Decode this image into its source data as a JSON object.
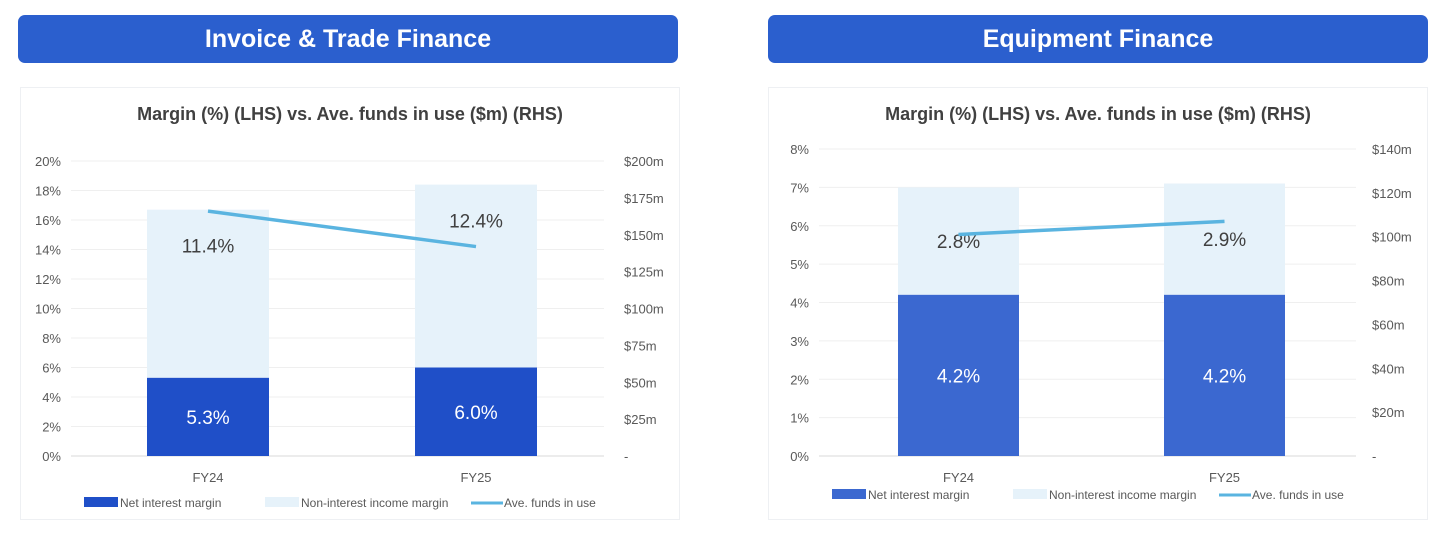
{
  "panels": [
    {
      "header": "Invoice & Trade Finance"
    },
    {
      "header": "Equipment Finance"
    }
  ],
  "colors": {
    "header": "#2b5fce",
    "nim_left": "#1f4fc8",
    "nim_right": "#3b68d0",
    "nonint": "#e6f2fa",
    "line": "#5ab4e0"
  },
  "chart_data": [
    {
      "type": "bar",
      "stacked": true,
      "title": "Margin (%) (LHS) vs. Ave. funds in use ($m) (RHS)",
      "categories": [
        "FY24",
        "FY25"
      ],
      "series": [
        {
          "name": "Net interest margin",
          "axis": "left",
          "values": [
            5.3,
            6.0
          ],
          "labels": [
            "5.3%",
            "6.0%"
          ]
        },
        {
          "name": "Non-interest income margin",
          "axis": "left",
          "values": [
            11.4,
            12.4
          ],
          "labels": [
            "11.4%",
            "12.4%"
          ]
        },
        {
          "name": "Ave. funds in use",
          "type": "line",
          "axis": "right",
          "values": [
            166,
            142
          ]
        }
      ],
      "ylim": [
        0,
        20
      ],
      "yticks": [
        "0%",
        "2%",
        "4%",
        "6%",
        "8%",
        "10%",
        "12%",
        "14%",
        "16%",
        "18%",
        "20%"
      ],
      "y2lim": [
        0,
        200
      ],
      "y2ticks": [
        "-",
        "$25m",
        "$50m",
        "$75m",
        "$100m",
        "$125m",
        "$150m",
        "$175m",
        "$200m"
      ],
      "grid": true,
      "legend": "bottom"
    },
    {
      "type": "bar",
      "stacked": true,
      "title": "Margin (%) (LHS) vs. Ave. funds in use ($m) (RHS)",
      "categories": [
        "FY24",
        "FY25"
      ],
      "series": [
        {
          "name": "Net interest margin",
          "axis": "left",
          "values": [
            4.2,
            4.2
          ],
          "labels": [
            "4.2%",
            "4.2%"
          ]
        },
        {
          "name": "Non-interest income margin",
          "axis": "left",
          "values": [
            2.8,
            2.9
          ],
          "labels": [
            "2.8%",
            "2.9%"
          ]
        },
        {
          "name": "Ave. funds in use",
          "type": "line",
          "axis": "right",
          "values": [
            101,
            107
          ]
        }
      ],
      "ylim": [
        0,
        8
      ],
      "yticks": [
        "0%",
        "1%",
        "2%",
        "3%",
        "4%",
        "5%",
        "6%",
        "7%",
        "8%"
      ],
      "y2lim": [
        0,
        140
      ],
      "y2ticks": [
        "-",
        "$20m",
        "$40m",
        "$60m",
        "$80m",
        "$100m",
        "$120m",
        "$140m"
      ],
      "grid": true,
      "legend": "bottom"
    }
  ]
}
